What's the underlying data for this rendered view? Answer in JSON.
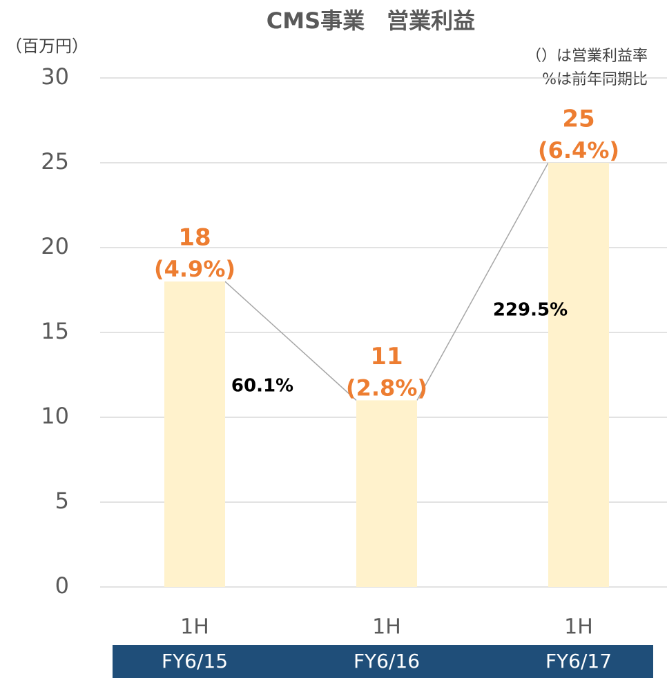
{
  "chart_data": {
    "type": "bar",
    "title": "CMS事業　営業利益",
    "y_axis_label": "（百万円）",
    "categories": [
      "1H",
      "1H",
      "1H"
    ],
    "groups": [
      "FY6/15",
      "FY6/16",
      "FY6/17"
    ],
    "values": [
      18,
      11,
      25
    ],
    "margin_labels": [
      "(4.9%)",
      "(2.8%)",
      "(6.4%)"
    ],
    "growth_labels": [
      "60.1%",
      "229.5%"
    ],
    "notes": [
      "（）は営業利益率",
      "%は前年同期比"
    ],
    "color": "#fff2cc",
    "value_label_color": "#ed7d31",
    "group_color": "#1f4e79",
    "ylim": [
      0,
      30
    ],
    "yticks": [
      0,
      5,
      10,
      15,
      20,
      25,
      30
    ],
    "grid": true
  }
}
